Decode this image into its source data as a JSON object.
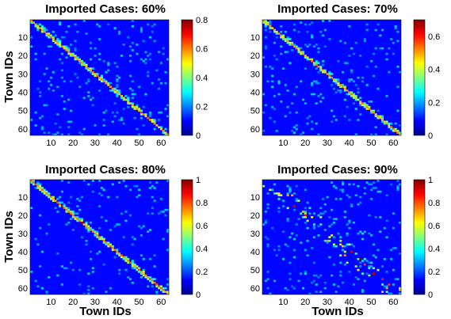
{
  "chart_data": [
    {
      "type": "heatmap",
      "title": "Imported Cases: 60%",
      "ylabel": "Town IDs",
      "xlabel": "",
      "x_ticks": [
        10,
        20,
        30,
        40,
        50,
        60
      ],
      "y_ticks": [
        10,
        20,
        30,
        40,
        50,
        60
      ],
      "xlim": [
        0.5,
        63.5
      ],
      "ylim": [
        0.5,
        63.5
      ],
      "colorbar": {
        "min": 0,
        "max": 0.8,
        "ticks": [
          0,
          0.2,
          0.4,
          0.6,
          0.8
        ]
      },
      "diagonal_intensity": 0.72,
      "hotspots": [
        [
          33,
          33,
          0.7
        ],
        [
          51,
          51,
          0.8
        ],
        [
          14,
          14,
          0.55
        ],
        [
          43,
          44,
          0.4
        ],
        [
          8,
          9,
          0.35
        ],
        [
          18,
          17,
          0.3
        ],
        [
          38,
          39,
          0.3
        ],
        [
          56,
          56,
          0.6
        ]
      ],
      "scatter_density": 0.05
    },
    {
      "type": "heatmap",
      "title": "Imported Cases: 70%",
      "ylabel": "",
      "xlabel": "",
      "x_ticks": [
        10,
        20,
        30,
        40,
        50,
        60
      ],
      "y_ticks": [
        10,
        20,
        30,
        40,
        50,
        60
      ],
      "xlim": [
        0.5,
        63.5
      ],
      "ylim": [
        0.5,
        63.5
      ],
      "colorbar": {
        "min": 0,
        "max": 0.7,
        "ticks": [
          0,
          0.2,
          0.4,
          0.6
        ]
      },
      "diagonal_intensity": 0.7,
      "hotspots": [
        [
          33,
          33,
          0.65
        ],
        [
          51,
          51,
          0.7
        ],
        [
          44,
          44,
          0.5
        ],
        [
          13,
          13,
          0.55
        ],
        [
          38,
          39,
          0.35
        ],
        [
          7,
          8,
          0.3
        ]
      ],
      "scatter_density": 0.05
    },
    {
      "type": "heatmap",
      "title": "Imported Cases: 80%",
      "ylabel": "Town IDs",
      "xlabel": "Town IDs",
      "x_ticks": [
        10,
        20,
        30,
        40,
        50,
        60
      ],
      "y_ticks": [
        10,
        20,
        30,
        40,
        50,
        60
      ],
      "xlim": [
        0.5,
        63.5
      ],
      "ylim": [
        0.5,
        63.5
      ],
      "colorbar": {
        "min": 0,
        "max": 1,
        "ticks": [
          0,
          0.2,
          0.4,
          0.6,
          0.8,
          1
        ]
      },
      "diagonal_intensity": 0.75,
      "hotspots": [
        [
          24,
          24,
          0.95
        ],
        [
          15,
          15,
          0.9
        ],
        [
          33,
          33,
          0.6
        ],
        [
          42,
          43,
          0.5
        ],
        [
          37,
          36,
          0.45
        ],
        [
          47,
          47,
          0.5
        ]
      ],
      "scatter_density": 0.04
    },
    {
      "type": "heatmap",
      "title": "Imported Cases: 90%",
      "ylabel": "",
      "xlabel": "Town IDs",
      "x_ticks": [
        10,
        20,
        30,
        40,
        50,
        60
      ],
      "y_ticks": [
        10,
        20,
        30,
        40,
        50,
        60
      ],
      "xlim": [
        0.5,
        63.5
      ],
      "ylim": [
        0.5,
        63.5
      ],
      "colorbar": {
        "min": 0,
        "max": 1,
        "ticks": [
          0,
          0.2,
          0.4,
          0.6,
          0.8,
          1
        ]
      },
      "diagonal_intensity": 0.0,
      "hotspots": [
        [
          15,
          15,
          0.9
        ],
        [
          20,
          20,
          0.85
        ],
        [
          32,
          31,
          0.6
        ],
        [
          41,
          40,
          0.9
        ],
        [
          45,
          44,
          1.0
        ],
        [
          47,
          47,
          0.8
        ],
        [
          51,
          52,
          0.9
        ],
        [
          55,
          55,
          0.85
        ],
        [
          58,
          58,
          0.8
        ],
        [
          38,
          42,
          0.7
        ],
        [
          36,
          36,
          0.6
        ],
        [
          8,
          9,
          0.5
        ],
        [
          17,
          12,
          0.5
        ],
        [
          44,
          50,
          0.6
        ]
      ],
      "scatter_density": 0.06
    }
  ]
}
